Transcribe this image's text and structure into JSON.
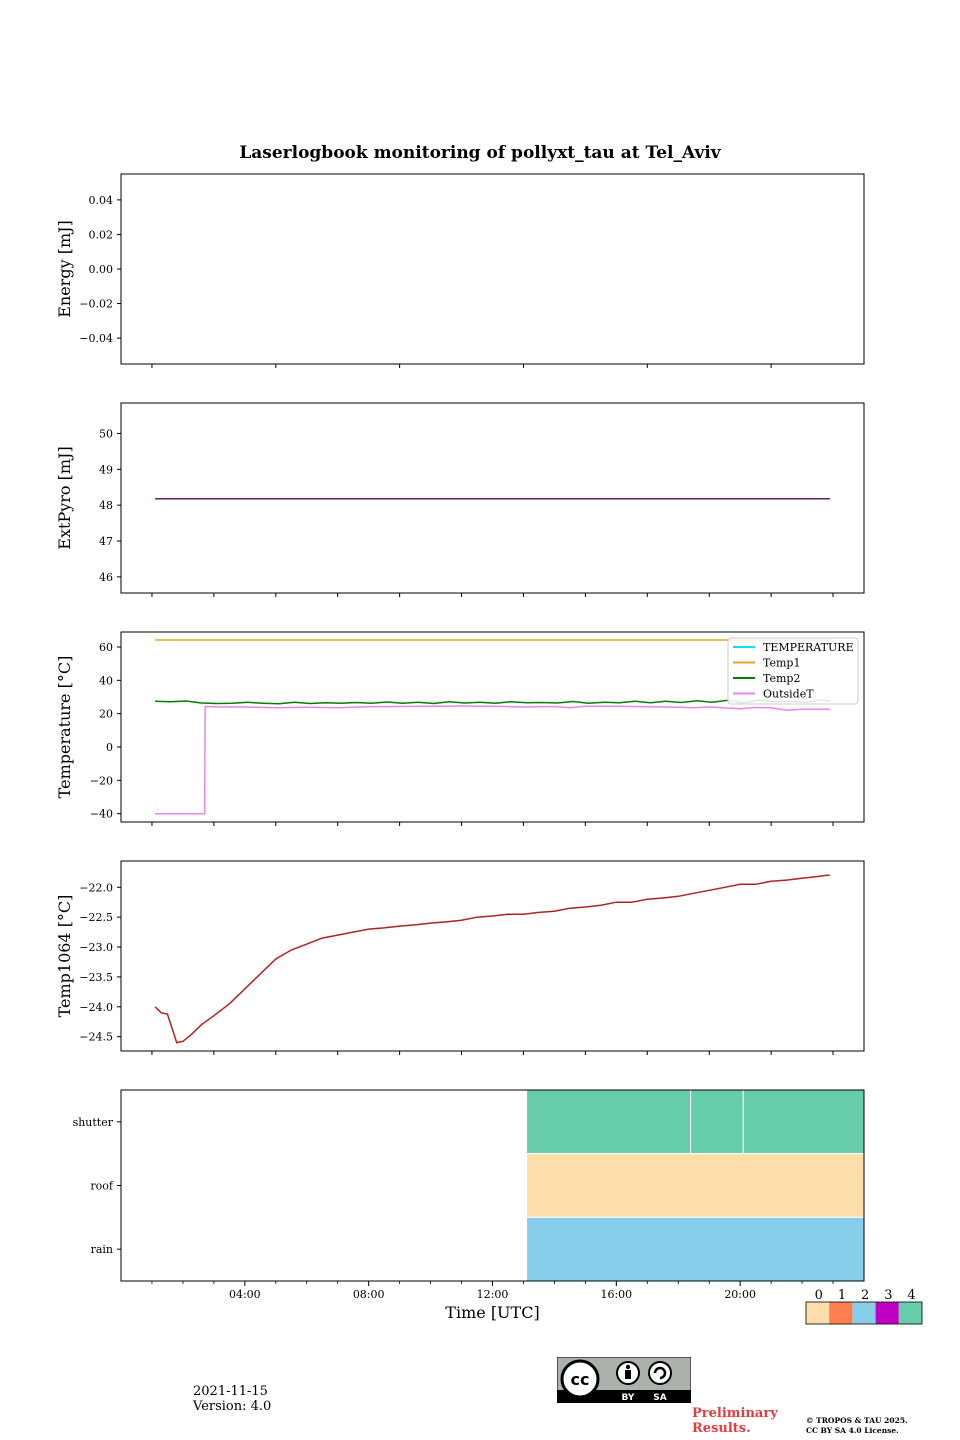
{
  "figure": {
    "title": "Laserlogbook monitoring of pollyxt_tau at Tel_Aviv",
    "date": "2021-11-15",
    "version": "Version: 4.0",
    "preliminary_line1": "Preliminary",
    "preliminary_line2": "Results.",
    "copyright_line1": "© TROPOS & TAU 2025.",
    "copyright_line2": "CC BY SA 4.0 License.",
    "cc_badge_labels": [
      "cc",
      "BY",
      "SA"
    ]
  },
  "colors": {
    "extpyro": "#6a1b6a",
    "temperature": "#00e5ee",
    "temp1": "#f0a020",
    "temp2": "#008000",
    "outsideT": "#ee82ee",
    "temp1064": "#b22222",
    "status0": "#fddeab",
    "status1": "#ff7f50",
    "status2": "#87ceeb",
    "status3": "#c000c0",
    "status4": "#66cdaa"
  },
  "chart_data": [
    {
      "type": "line",
      "name": "energy",
      "ylabel": "Energy [mJ]",
      "ylim": [
        -0.055,
        0.055
      ],
      "yticks": [
        "0.04",
        "0.02",
        "0.00",
        "−0.02",
        "−0.04"
      ],
      "ytick_values": [
        0.04,
        0.02,
        0.0,
        -0.02,
        -0.04
      ],
      "xlim": [
        0,
        24
      ],
      "xtick_values": [
        1,
        5,
        9,
        13,
        17,
        21
      ],
      "series": []
    },
    {
      "type": "line",
      "name": "extpyro",
      "ylabel": "ExtPyro [mJ]",
      "ylim": [
        45.55,
        50.85
      ],
      "yticks": [
        "50",
        "49",
        "48",
        "47",
        "46"
      ],
      "ytick_values": [
        50,
        49,
        48,
        47,
        46
      ],
      "xlim": [
        0,
        24
      ],
      "xtick_values": [
        1,
        3,
        5,
        7,
        9,
        11,
        13,
        15,
        17,
        19,
        21,
        23
      ],
      "series": [
        {
          "name": "ExtPyro",
          "color_key": "extpyro",
          "x": [
            1.1,
            22.9
          ],
          "y": [
            48.18,
            48.18
          ]
        }
      ]
    },
    {
      "type": "line",
      "name": "temperature",
      "ylabel": "Temperature [°C]",
      "ylim": [
        -45,
        69
      ],
      "yticks": [
        "60",
        "40",
        "20",
        "0",
        "−20",
        "−40"
      ],
      "ytick_values": [
        60,
        40,
        20,
        0,
        -20,
        -40
      ],
      "xlim": [
        0,
        24
      ],
      "xtick_values": [
        1,
        3,
        5,
        7,
        9,
        11,
        13,
        15,
        17,
        19,
        21,
        23
      ],
      "legend": [
        "TEMPERATURE",
        "Temp1",
        "Temp2",
        "OutsideT"
      ],
      "legend_loc": "top-right",
      "series": [
        {
          "name": "TEMPERATURE",
          "color_key": "temperature",
          "x": [],
          "y": []
        },
        {
          "name": "Temp1",
          "color_key": "temp1",
          "x": [
            1.1,
            22.9
          ],
          "y": [
            64.2,
            64.2
          ]
        },
        {
          "name": "Temp2",
          "color_key": "temp2",
          "x": [
            1.1,
            1.6,
            2.1,
            2.6,
            3.1,
            3.6,
            4.1,
            4.6,
            5.1,
            5.6,
            6.1,
            6.6,
            7.1,
            7.6,
            8.1,
            8.6,
            9.1,
            9.6,
            10.1,
            10.6,
            11.1,
            11.6,
            12.1,
            12.6,
            13.1,
            13.6,
            14.1,
            14.6,
            15.1,
            15.6,
            16.1,
            16.6,
            17.1,
            17.6,
            18.1,
            18.6,
            19.1,
            19.6,
            20.1,
            20.6,
            21.1,
            21.6,
            22.1,
            22.6,
            22.9
          ],
          "y": [
            27.5,
            27.2,
            27.6,
            26.4,
            26.1,
            26.3,
            26.8,
            26.2,
            26.0,
            26.9,
            26.1,
            26.6,
            26.2,
            26.7,
            26.3,
            27.0,
            26.2,
            26.8,
            26.1,
            27.1,
            26.4,
            26.9,
            26.2,
            27.2,
            26.5,
            26.7,
            26.4,
            27.3,
            26.2,
            26.8,
            26.5,
            27.4,
            26.6,
            27.5,
            26.7,
            27.8,
            26.9,
            28.0,
            26.6,
            28.1,
            27.2,
            27.4,
            26.8,
            28.2,
            27.6
          ]
        },
        {
          "name": "OutsideT",
          "color_key": "outsideT",
          "x": [
            1.1,
            2.7,
            2.72,
            3.2,
            4,
            5,
            6,
            7,
            8,
            9,
            10,
            11,
            12,
            13,
            14,
            14.5,
            15,
            16,
            17,
            18,
            18.5,
            19,
            20,
            20.5,
            21,
            21.5,
            22,
            22.9
          ],
          "y": [
            -40,
            -40,
            24.3,
            24.0,
            24.0,
            23.6,
            23.8,
            23.6,
            24.1,
            24.3,
            24.5,
            24.6,
            24.4,
            24.0,
            24.3,
            23.5,
            24.5,
            24.4,
            24.1,
            23.8,
            23.6,
            24.0,
            23.0,
            23.7,
            23.5,
            22.0,
            22.6,
            22.7
          ]
        }
      ]
    },
    {
      "type": "line",
      "name": "temp1064",
      "ylabel": "Temp1064 [°C]",
      "ylim": [
        -24.74,
        -21.56
      ],
      "yticks": [
        "−22.0",
        "−22.5",
        "−23.0",
        "−23.5",
        "−24.0",
        "−24.5"
      ],
      "ytick_values": [
        -22.0,
        -22.5,
        -23.0,
        -23.5,
        -24.0,
        -24.5
      ],
      "xlim": [
        0,
        24
      ],
      "xtick_values": [
        1,
        3,
        5,
        7,
        9,
        11,
        13,
        15,
        17,
        19,
        21,
        23
      ],
      "series": [
        {
          "name": "Temp1064",
          "color_key": "temp1064",
          "x": [
            1.1,
            1.3,
            1.5,
            1.8,
            2.0,
            2.3,
            2.6,
            3.0,
            3.5,
            4.0,
            4.5,
            5.0,
            5.5,
            6.0,
            6.5,
            7.0,
            7.5,
            8.0,
            8.5,
            9.0,
            9.5,
            10.0,
            10.5,
            11.0,
            11.5,
            12.0,
            12.5,
            13.0,
            13.5,
            14.0,
            14.5,
            15.0,
            15.5,
            16.0,
            16.5,
            17.0,
            17.5,
            18.0,
            18.5,
            19.0,
            19.5,
            20.0,
            20.5,
            21.0,
            21.5,
            22.0,
            22.5,
            22.8,
            22.9
          ],
          "y": [
            -24.0,
            -24.1,
            -24.12,
            -24.6,
            -24.58,
            -24.45,
            -24.3,
            -24.15,
            -23.95,
            -23.7,
            -23.45,
            -23.2,
            -23.05,
            -22.95,
            -22.85,
            -22.8,
            -22.75,
            -22.7,
            -22.68,
            -22.65,
            -22.63,
            -22.6,
            -22.58,
            -22.55,
            -22.5,
            -22.48,
            -22.45,
            -22.45,
            -22.42,
            -22.4,
            -22.35,
            -22.33,
            -22.3,
            -22.25,
            -22.25,
            -22.2,
            -22.18,
            -22.15,
            -22.1,
            -22.05,
            -22.0,
            -21.95,
            -21.95,
            -21.9,
            -21.88,
            -21.85,
            -21.82,
            -21.8,
            -21.8
          ]
        }
      ]
    },
    {
      "type": "heatmap",
      "name": "status",
      "rows": [
        "shutter",
        "roof",
        "rain"
      ],
      "xlim": [
        0,
        24
      ],
      "xticks": [
        "04:00",
        "08:00",
        "12:00",
        "16:00",
        "20:00"
      ],
      "xtick_values": [
        4,
        8,
        12,
        16,
        20
      ],
      "minor_xtick_values": [
        1,
        2,
        3,
        5,
        6,
        7,
        9,
        10,
        11,
        13,
        14,
        15,
        17,
        18,
        19,
        21,
        22,
        23
      ],
      "xlabel": "Time [UTC]",
      "cells": [
        {
          "row": "shutter",
          "x0": 13.1,
          "x1": 18.4,
          "value": 4
        },
        {
          "row": "shutter",
          "x0": 18.4,
          "x1": 20.1,
          "value": 4
        },
        {
          "row": "shutter",
          "x0": 20.1,
          "x1": 24,
          "value": 4
        },
        {
          "row": "roof",
          "x0": 13.1,
          "x1": 24,
          "value": 0
        },
        {
          "row": "rain",
          "x0": 13.1,
          "x1": 24,
          "value": 2
        }
      ],
      "colorbar": {
        "labels": [
          "0",
          "1",
          "2",
          "3",
          "4"
        ],
        "color_keys": [
          "status0",
          "status1",
          "status2",
          "status3",
          "status4"
        ]
      }
    }
  ]
}
